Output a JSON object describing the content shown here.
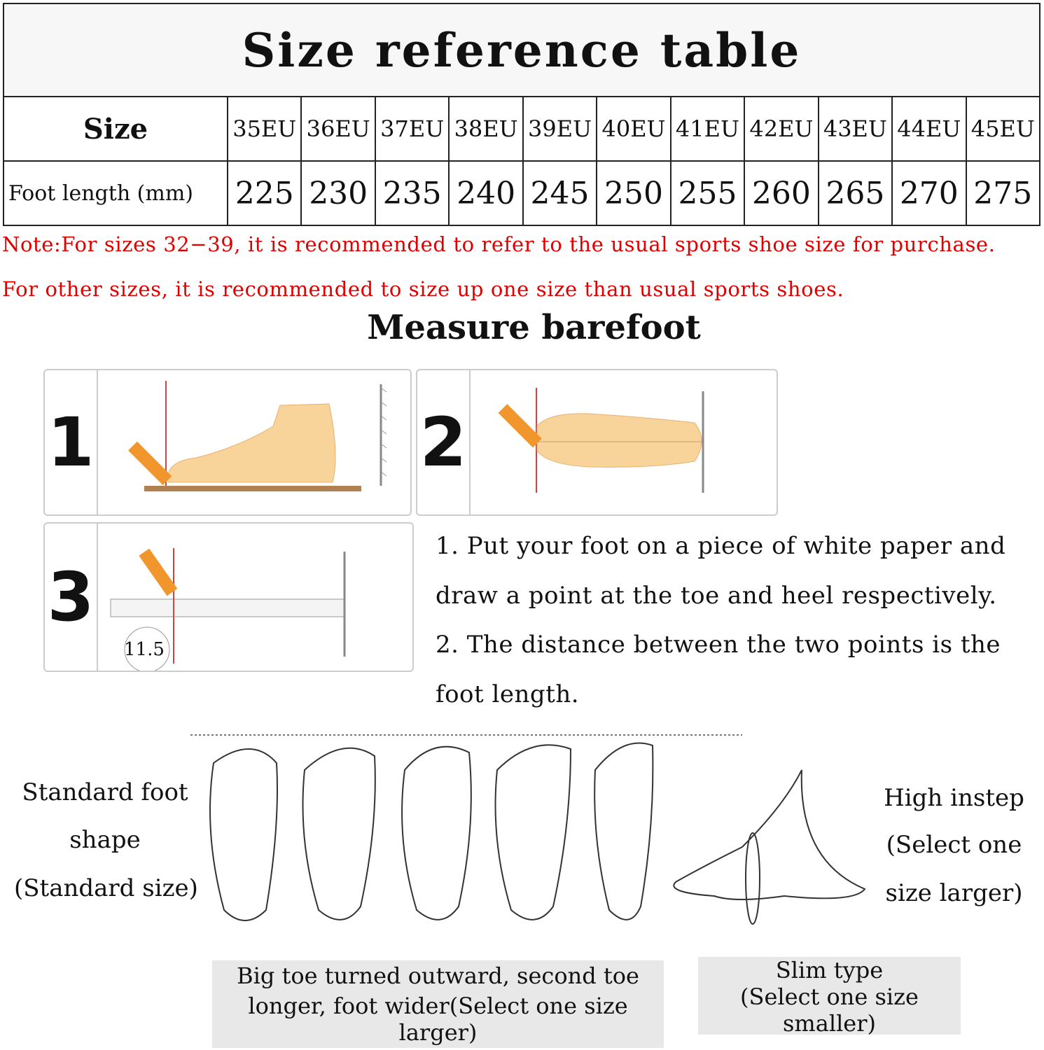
{
  "title": "Size reference table",
  "table": {
    "size_label": "Size",
    "length_label": "Foot length (mm)",
    "sizes": [
      "35EU",
      "36EU",
      "37EU",
      "38EU",
      "39EU",
      "40EU",
      "41EU",
      "42EU",
      "43EU",
      "44EU",
      "45EU"
    ],
    "lengths": [
      "225",
      "230",
      "235",
      "240",
      "245",
      "250",
      "255",
      "260",
      "265",
      "270",
      "275"
    ]
  },
  "notes": [
    "Note:For sizes 32−39, it is recommended to refer to the usual sports shoe size for purchase.",
    "For other sizes, it is recommended to size up one size than usual sports shoes."
  ],
  "measure": {
    "heading": "Measure barefoot",
    "steps": [
      "1",
      "2",
      "3"
    ],
    "ruler_reading": "11.5",
    "instructions": [
      "1. Put your foot on a piece of white paper and",
      "draw a point at the toe and heel respectively.",
      "2. The distance between the two points is the",
      "foot length."
    ]
  },
  "foot_types": {
    "standard": [
      "Standard foot",
      "shape",
      "(Standard size)"
    ],
    "high_instep": [
      "High instep",
      "(Select one",
      "size larger)"
    ],
    "wide": [
      "Big toe turned outward, second toe",
      "longer, foot wider(Select one size larger)"
    ],
    "slim": [
      "Slim type",
      "(Select one size smaller)"
    ]
  },
  "colors": {
    "note": "#e00000",
    "pencil": "#f0962c",
    "foot": "#f8d39a"
  }
}
